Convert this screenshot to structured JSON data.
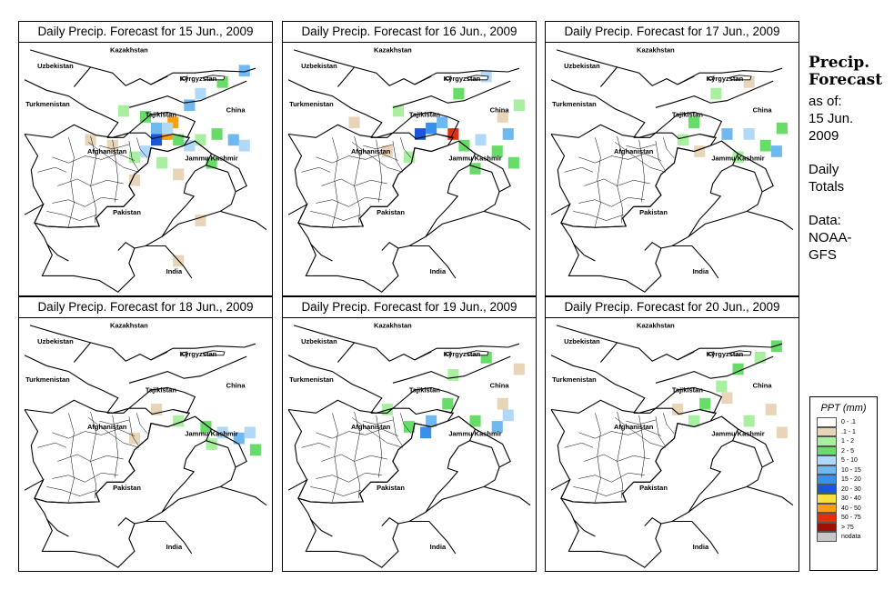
{
  "panels": [
    {
      "title": "Daily Precip. Forecast for  15 Jun., 2009"
    },
    {
      "title": "Daily Precip. Forecast for  16 Jun., 2009"
    },
    {
      "title": "Daily Precip. Forecast for  17 Jun., 2009"
    },
    {
      "title": "Daily Precip. Forecast for  18 Jun., 2009"
    },
    {
      "title": "Daily Precip. Forecast for  19 Jun., 2009"
    },
    {
      "title": "Daily Precip. Forecast for  20 Jun., 2009"
    }
  ],
  "map_labels": {
    "kazakhstan": "Kazakhstan",
    "uzbekistan": "Uzbekistan",
    "kyrgyzstan": "Kyrgyzstan",
    "tajikistan": "Tajikistan",
    "turkmenistan": "Turkmenistan",
    "china": "China",
    "afghanistan": "Afghanistan",
    "jammu_kashmir": "Jammu Kashmir",
    "pakistan": "Pakistan",
    "india": "India"
  },
  "side_info": {
    "title_line1": "Precip.",
    "title_line2": "Forecast",
    "asof_line1": "as of:",
    "asof_line2": "15 Jun.",
    "asof_line3": "2009",
    "totals_line1": "Daily",
    "totals_line2": "Totals",
    "data_line1": "Data:",
    "data_line2": "NOAA-",
    "data_line3": "GFS"
  },
  "legend": {
    "title": "PPT (mm)",
    "items": [
      {
        "label": "0 - .1",
        "color": "#ffffff"
      },
      {
        "label": ".1 - 1",
        "color": "#e8d4b8"
      },
      {
        "label": "1 - 2",
        "color": "#a8f0a0"
      },
      {
        "label": "2 - 5",
        "color": "#68dc68"
      },
      {
        "label": "5 - 10",
        "color": "#b0d8f8"
      },
      {
        "label": "10 - 15",
        "color": "#70b8f0"
      },
      {
        "label": "15 - 20",
        "color": "#3890e8"
      },
      {
        "label": "20 - 30",
        "color": "#1858d8"
      },
      {
        "label": "30 - 40",
        "color": "#f8e040"
      },
      {
        "label": "40 - 50",
        "color": "#f8a010"
      },
      {
        "label": "50 - 75",
        "color": "#e03010"
      },
      {
        "label": "> 75",
        "color": "#a01000"
      },
      {
        "label": "nodata",
        "color": "#c8c8c8"
      }
    ]
  },
  "precip": [
    {
      "day": "15 Jun.",
      "cells": [
        {
          "lon": 72.5,
          "lat": 37.5,
          "cat": 10
        },
        {
          "lon": 73.0,
          "lat": 37.5,
          "cat": 9
        },
        {
          "lon": 72.0,
          "lat": 37.0,
          "cat": 7
        },
        {
          "lon": 73.5,
          "lat": 38.5,
          "cat": 9
        },
        {
          "lon": 72.0,
          "lat": 38.0,
          "cat": 5
        },
        {
          "lon": 73.0,
          "lat": 38.0,
          "cat": 4
        },
        {
          "lon": 74.0,
          "lat": 37.0,
          "cat": 3
        },
        {
          "lon": 75.0,
          "lat": 36.5,
          "cat": 4
        },
        {
          "lon": 76.0,
          "lat": 37.0,
          "cat": 2
        },
        {
          "lon": 77.5,
          "lat": 37.5,
          "cat": 3
        },
        {
          "lon": 79.0,
          "lat": 37.0,
          "cat": 5
        },
        {
          "lon": 80.0,
          "lat": 36.5,
          "cat": 4
        },
        {
          "lon": 75.0,
          "lat": 40.0,
          "cat": 5
        },
        {
          "lon": 76.0,
          "lat": 41.0,
          "cat": 4
        },
        {
          "lon": 78.0,
          "lat": 42.0,
          "cat": 3
        },
        {
          "lon": 80.0,
          "lat": 43.0,
          "cat": 5
        },
        {
          "lon": 71.0,
          "lat": 36.0,
          "cat": 4
        },
        {
          "lon": 70.0,
          "lat": 35.5,
          "cat": 2
        },
        {
          "lon": 68.0,
          "lat": 36.5,
          "cat": 1
        },
        {
          "lon": 66.0,
          "lat": 37.0,
          "cat": 1
        },
        {
          "lon": 71.0,
          "lat": 39.0,
          "cat": 3
        },
        {
          "lon": 69.0,
          "lat": 39.5,
          "cat": 2
        },
        {
          "lon": 77.0,
          "lat": 35.0,
          "cat": 3
        },
        {
          "lon": 74.0,
          "lat": 34.0,
          "cat": 1
        },
        {
          "lon": 72.5,
          "lat": 35.0,
          "cat": 2
        },
        {
          "lon": 70.0,
          "lat": 33.5,
          "cat": 1
        },
        {
          "lon": 76.0,
          "lat": 30.0,
          "cat": 1
        },
        {
          "lon": 74.0,
          "lat": 26.5,
          "cat": 1
        }
      ]
    },
    {
      "day": "16 Jun.",
      "cells": [
        {
          "lon": 75.0,
          "lat": 37.5,
          "cat": 10
        },
        {
          "lon": 72.0,
          "lat": 37.5,
          "cat": 7
        },
        {
          "lon": 73.0,
          "lat": 38.0,
          "cat": 6
        },
        {
          "lon": 74.0,
          "lat": 38.5,
          "cat": 5
        },
        {
          "lon": 76.0,
          "lat": 36.5,
          "cat": 3
        },
        {
          "lon": 77.5,
          "lat": 37.0,
          "cat": 4
        },
        {
          "lon": 79.0,
          "lat": 36.0,
          "cat": 3
        },
        {
          "lon": 80.0,
          "lat": 37.5,
          "cat": 5
        },
        {
          "lon": 80.5,
          "lat": 35.0,
          "cat": 3
        },
        {
          "lon": 77.0,
          "lat": 34.5,
          "cat": 3
        },
        {
          "lon": 75.5,
          "lat": 41.0,
          "cat": 3
        },
        {
          "lon": 78.0,
          "lat": 42.5,
          "cat": 4
        },
        {
          "lon": 71.0,
          "lat": 35.5,
          "cat": 2
        },
        {
          "lon": 69.0,
          "lat": 36.0,
          "cat": 1
        },
        {
          "lon": 66.0,
          "lat": 38.5,
          "cat": 1
        },
        {
          "lon": 70.0,
          "lat": 39.5,
          "cat": 2
        },
        {
          "lon": 79.5,
          "lat": 39.0,
          "cat": 1
        },
        {
          "lon": 81.0,
          "lat": 40.0,
          "cat": 2
        }
      ]
    },
    {
      "day": "17 Jun.",
      "cells": [
        {
          "lon": 76.0,
          "lat": 37.5,
          "cat": 5
        },
        {
          "lon": 78.0,
          "lat": 37.5,
          "cat": 4
        },
        {
          "lon": 79.5,
          "lat": 36.5,
          "cat": 3
        },
        {
          "lon": 80.5,
          "lat": 36.0,
          "cat": 5
        },
        {
          "lon": 73.0,
          "lat": 38.5,
          "cat": 3
        },
        {
          "lon": 72.0,
          "lat": 37.0,
          "cat": 2
        },
        {
          "lon": 75.0,
          "lat": 41.0,
          "cat": 2
        },
        {
          "lon": 78.0,
          "lat": 42.0,
          "cat": 1
        },
        {
          "lon": 81.0,
          "lat": 38.0,
          "cat": 3
        },
        {
          "lon": 77.0,
          "lat": 35.5,
          "cat": 2
        },
        {
          "lon": 73.5,
          "lat": 36.0,
          "cat": 1
        }
      ]
    },
    {
      "day": "18 Jun.",
      "cells": [
        {
          "lon": 76.5,
          "lat": 36.0,
          "cat": 3
        },
        {
          "lon": 78.0,
          "lat": 35.5,
          "cat": 4
        },
        {
          "lon": 79.5,
          "lat": 35.0,
          "cat": 5
        },
        {
          "lon": 80.5,
          "lat": 35.5,
          "cat": 4
        },
        {
          "lon": 74.0,
          "lat": 36.5,
          "cat": 2
        },
        {
          "lon": 72.0,
          "lat": 37.5,
          "cat": 1
        },
        {
          "lon": 77.0,
          "lat": 34.5,
          "cat": 2
        },
        {
          "lon": 81.0,
          "lat": 34.0,
          "cat": 3
        },
        {
          "lon": 70.0,
          "lat": 35.0,
          "cat": 1
        }
      ]
    },
    {
      "day": "19 Jun.",
      "cells": [
        {
          "lon": 73.0,
          "lat": 36.5,
          "cat": 5
        },
        {
          "lon": 72.5,
          "lat": 35.5,
          "cat": 6
        },
        {
          "lon": 74.5,
          "lat": 38.0,
          "cat": 3
        },
        {
          "lon": 77.0,
          "lat": 36.5,
          "cat": 3
        },
        {
          "lon": 79.0,
          "lat": 36.0,
          "cat": 5
        },
        {
          "lon": 80.0,
          "lat": 37.0,
          "cat": 4
        },
        {
          "lon": 75.0,
          "lat": 40.5,
          "cat": 2
        },
        {
          "lon": 78.0,
          "lat": 42.0,
          "cat": 3
        },
        {
          "lon": 81.0,
          "lat": 41.0,
          "cat": 1
        },
        {
          "lon": 71.0,
          "lat": 36.0,
          "cat": 3
        },
        {
          "lon": 69.0,
          "lat": 37.5,
          "cat": 2
        },
        {
          "lon": 79.5,
          "lat": 38.0,
          "cat": 1
        }
      ]
    },
    {
      "day": "20 Jun.",
      "cells": [
        {
          "lon": 74.0,
          "lat": 38.0,
          "cat": 3
        },
        {
          "lon": 75.5,
          "lat": 39.5,
          "cat": 2
        },
        {
          "lon": 77.0,
          "lat": 41.0,
          "cat": 3
        },
        {
          "lon": 79.0,
          "lat": 42.0,
          "cat": 2
        },
        {
          "lon": 80.5,
          "lat": 43.0,
          "cat": 3
        },
        {
          "lon": 78.0,
          "lat": 36.5,
          "cat": 2
        },
        {
          "lon": 80.0,
          "lat": 37.5,
          "cat": 1
        },
        {
          "lon": 73.0,
          "lat": 36.5,
          "cat": 2
        },
        {
          "lon": 76.0,
          "lat": 38.5,
          "cat": 1
        },
        {
          "lon": 81.0,
          "lat": 35.5,
          "cat": 1
        },
        {
          "lon": 71.5,
          "lat": 37.5,
          "cat": 1
        }
      ]
    }
  ]
}
